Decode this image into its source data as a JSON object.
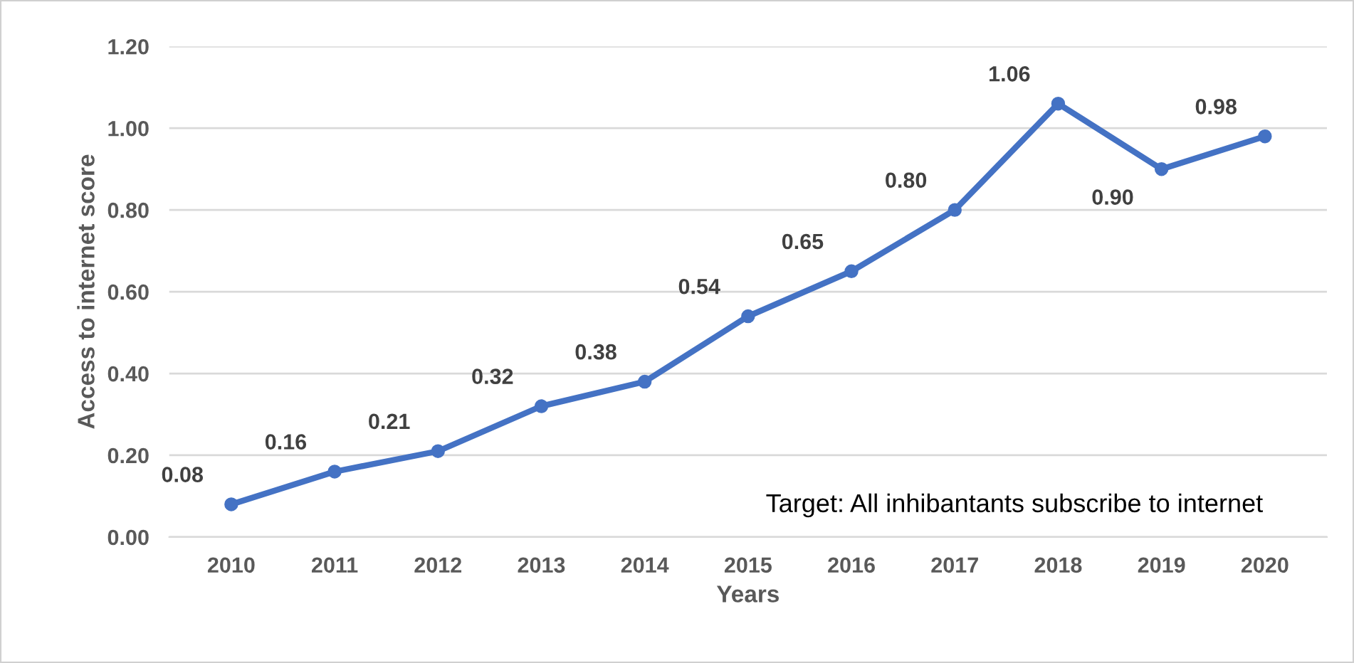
{
  "chart_data": {
    "type": "line",
    "xlabel": "Years",
    "ylabel": "Access to internet score",
    "categories": [
      "2010",
      "2011",
      "2012",
      "2013",
      "2014",
      "2015",
      "2016",
      "2017",
      "2018",
      "2019",
      "2020"
    ],
    "series": [
      {
        "color": "#4472c4",
        "values": [
          0.08,
          0.16,
          0.21,
          0.32,
          0.38,
          0.54,
          0.65,
          0.8,
          1.06,
          0.9,
          0.98
        ]
      }
    ],
    "value_labels": [
      "0.08",
      "0.16",
      "0.21",
      "0.32",
      "0.38",
      "0.54",
      "0.65",
      "0.80",
      "1.06",
      "0.90",
      "0.98"
    ],
    "ylim": [
      0,
      1.2
    ],
    "yticks": [
      {
        "value": 0,
        "label": "0.00"
      },
      {
        "value": 0.2,
        "label": "0.20"
      },
      {
        "value": 0.4,
        "label": "0.40"
      },
      {
        "value": 0.6,
        "label": "0.60"
      },
      {
        "value": 0.8,
        "label": "0.80"
      },
      {
        "value": 1.0,
        "label": "1.00"
      },
      {
        "value": 1.2,
        "label": "1.20"
      }
    ],
    "grid": "y",
    "marker": "circle",
    "line_style": "solid",
    "legend": false,
    "annotations": [
      "Target: All inhibantants subscribe to internet"
    ]
  }
}
